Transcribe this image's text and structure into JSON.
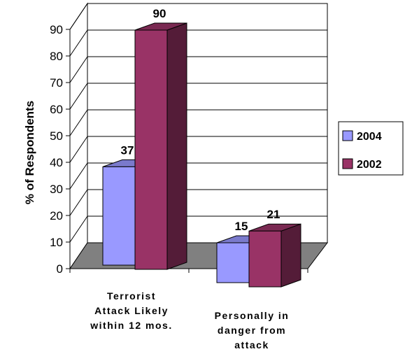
{
  "chart_data": {
    "type": "bar",
    "title": "",
    "ylabel": "% of Respondents",
    "ylim": [
      0,
      90
    ],
    "yticks": [
      0,
      10,
      20,
      30,
      40,
      50,
      60,
      70,
      80,
      90
    ],
    "categories": [
      [
        "Terrorist",
        "Attack Likely",
        "within 12 mos."
      ],
      [
        "Personally in",
        "danger from",
        "attack"
      ]
    ],
    "series": [
      {
        "name": "2004",
        "values": [
          37,
          15
        ],
        "color": "#9999ff"
      },
      {
        "name": "2002",
        "values": [
          90,
          21
        ],
        "color": "#993366"
      }
    ],
    "legend": "right",
    "grid": true,
    "floor_color": "#808080"
  }
}
